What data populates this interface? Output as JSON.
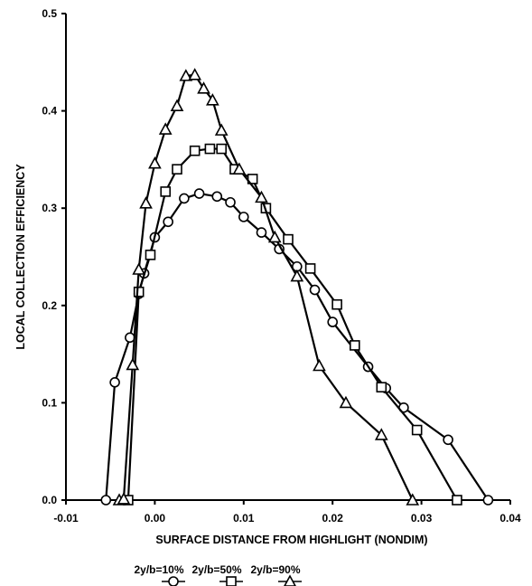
{
  "chart_data": {
    "type": "line",
    "title": "",
    "xlabel": "SURFACE DISTANCE FROM HIGHLIGHT (NONDIM)",
    "ylabel": "LOCAL COLLECTION EFFICIENCY",
    "xlim": [
      -0.01,
      0.04
    ],
    "ylim": [
      0.0,
      0.5
    ],
    "xticks": [
      -0.01,
      0.0,
      0.01,
      0.02,
      0.03,
      0.04
    ],
    "xtick_labels": [
      "-0.01",
      "0.00",
      "0.01",
      "0.02",
      "0.03",
      "0.04"
    ],
    "yticks": [
      0.0,
      0.1,
      0.2,
      0.3,
      0.4,
      0.5
    ],
    "ytick_labels": [
      "0.0",
      "0.1",
      "0.2",
      "0.3",
      "0.4",
      "0.5"
    ],
    "grid": false,
    "legend_position": "bottom",
    "series": [
      {
        "name": "2y/b=10%",
        "marker": "circle",
        "x": [
          -0.0055,
          -0.0045,
          -0.0028,
          -0.0018,
          -0.0012,
          0.0,
          0.0015,
          0.0033,
          0.005,
          0.007,
          0.0085,
          0.01,
          0.012,
          0.014,
          0.016,
          0.018,
          0.02,
          0.024,
          0.026,
          0.028,
          0.033,
          0.0375
        ],
        "y": [
          0.0,
          0.121,
          0.167,
          0.212,
          0.233,
          0.27,
          0.286,
          0.31,
          0.315,
          0.312,
          0.306,
          0.291,
          0.275,
          0.258,
          0.24,
          0.216,
          0.183,
          0.137,
          0.115,
          0.095,
          0.062,
          0.0
        ]
      },
      {
        "name": "2y/b=50%",
        "marker": "square",
        "x": [
          -0.003,
          -0.0018,
          -0.0005,
          0.0012,
          0.0025,
          0.0045,
          0.0062,
          0.0075,
          0.009,
          0.011,
          0.0125,
          0.015,
          0.0175,
          0.0205,
          0.0225,
          0.0255,
          0.0295,
          0.034
        ],
        "y": [
          0.0,
          0.214,
          0.252,
          0.317,
          0.34,
          0.359,
          0.361,
          0.361,
          0.34,
          0.33,
          0.3,
          0.268,
          0.238,
          0.201,
          0.159,
          0.116,
          0.072,
          0.0
        ]
      },
      {
        "name": "2y/b=90%",
        "marker": "triangle",
        "x": [
          -0.004,
          -0.0035,
          -0.0025,
          -0.0018,
          -0.001,
          0.0,
          0.0012,
          0.0025,
          0.0035,
          0.0045,
          0.0055,
          0.0065,
          0.0075,
          0.0095,
          0.012,
          0.0135,
          0.016,
          0.0185,
          0.0215,
          0.0255,
          0.029
        ],
        "y": [
          0.0,
          0.001,
          0.139,
          0.237,
          0.305,
          0.346,
          0.381,
          0.405,
          0.436,
          0.437,
          0.423,
          0.411,
          0.38,
          0.34,
          0.311,
          0.27,
          0.23,
          0.138,
          0.1,
          0.067,
          0.0
        ]
      }
    ]
  },
  "legend": [
    {
      "label": "2y/b=10%",
      "marker": "circle"
    },
    {
      "label": "2y/b=50%",
      "marker": "square"
    },
    {
      "label": "2y/b=90%",
      "marker": "triangle"
    }
  ]
}
